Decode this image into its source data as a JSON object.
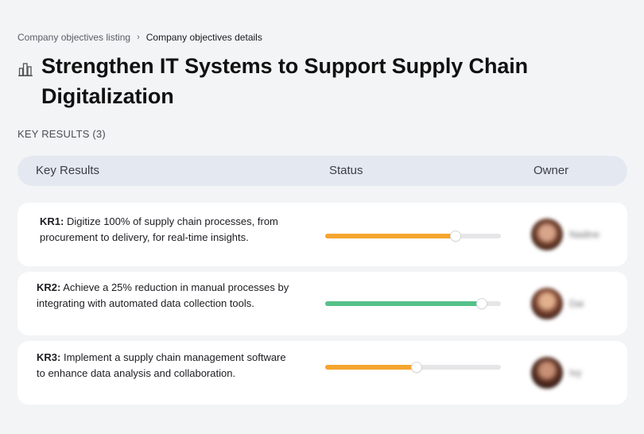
{
  "breadcrumb": {
    "parent": "Company objectives listing",
    "separator": "›",
    "current": "Company objectives details"
  },
  "objective": {
    "icon": "building-chart-icon",
    "title": "Strengthen IT Systems to Support Supply Chain Digitalization"
  },
  "key_results_label": "KEY RESULTS (3)",
  "table": {
    "columns": {
      "key_results": "Key Results",
      "status": "Status",
      "owner": "Owner"
    }
  },
  "colors": {
    "in_progress": "#f5a52f",
    "on_track": "#55c18a",
    "track": "#e6e6e9",
    "header_bg": "#e3e8f1"
  },
  "key_results": [
    {
      "id": "KR1:",
      "text": "Digitize 100% of supply chain processes, from procurement to delivery, for real-time insights.",
      "progress": 0.74,
      "color": "#f5a52f",
      "owner_name": "Nadine"
    },
    {
      "id": "KR2:",
      "text": "Achieve a 25% reduction in manual processes by integrating with automated data collection tools.",
      "progress": 0.89,
      "color": "#55c18a",
      "owner_name": "Dai"
    },
    {
      "id": "KR3:",
      "text": "Implement a supply chain management software to enhance data analysis and collaboration.",
      "progress": 0.52,
      "color": "#f5a52f",
      "owner_name": "Ivy"
    }
  ]
}
